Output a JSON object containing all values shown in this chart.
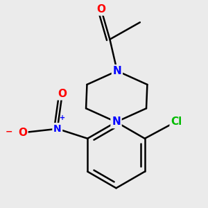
{
  "background_color": "#ebebeb",
  "bond_color": "#000000",
  "bond_width": 1.8,
  "atom_colors": {
    "O": "#ff0000",
    "N": "#0000ff",
    "Cl": "#00bb00",
    "C": "#000000"
  },
  "font_size": 11
}
